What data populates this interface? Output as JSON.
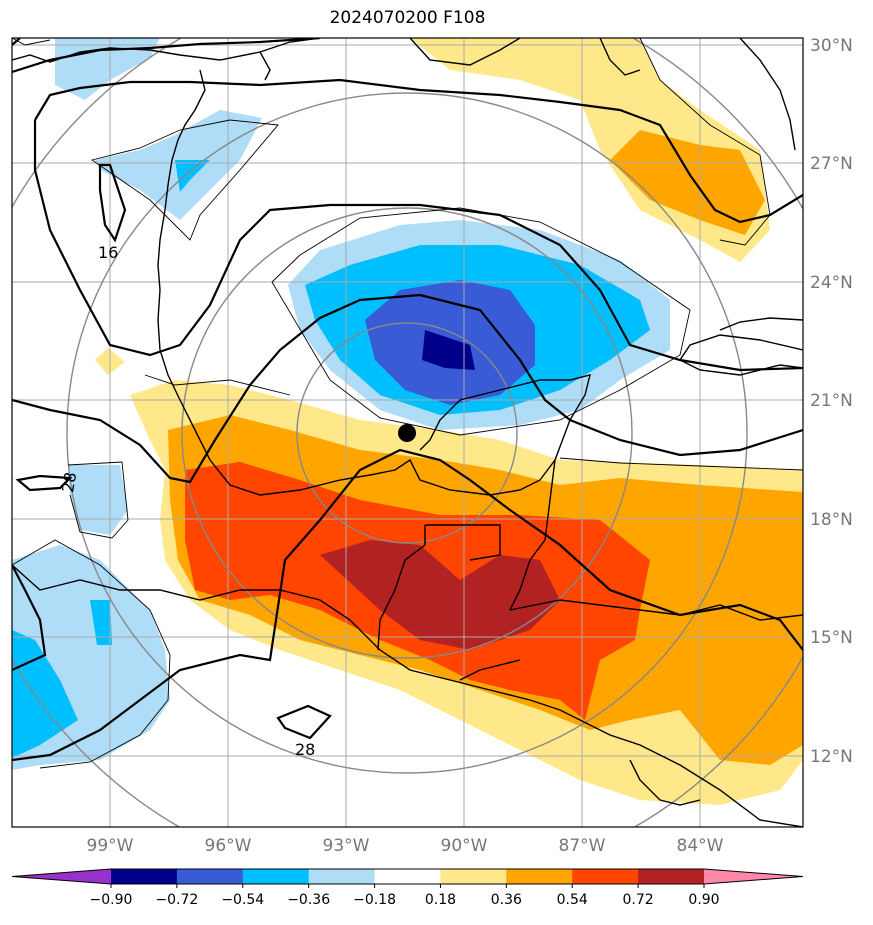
{
  "title": "2024070200 F108",
  "lat_labels": [
    "30°N",
    "27°N",
    "24°N",
    "21°N",
    "18°N",
    "15°N",
    "12°N"
  ],
  "lon_labels": [
    "99°W",
    "96°W",
    "93°W",
    "90°W",
    "87°W",
    "84°W"
  ],
  "colorbar": {
    "ticks": [
      "−0.90",
      "−0.72",
      "−0.54",
      "−0.36",
      "−0.18",
      "0.18",
      "0.36",
      "0.54",
      "0.72",
      "0.90"
    ],
    "colors": [
      "#9932cc",
      "#00008b",
      "#3a5bd6",
      "#00bfff",
      "#afdcf7",
      "#ffffff",
      "#ffe88a",
      "#ffa500",
      "#ff4500",
      "#b22222",
      "#ff88aa"
    ]
  },
  "contour_labels": [
    "16",
    "28",
    "28"
  ],
  "fill_colors": {
    "light_blue": "#afdcf7",
    "blue": "#00bfff",
    "mid_blue": "#3a5bd6",
    "navy": "#00008b",
    "yellow": "#ffe88a",
    "orange": "#ffa500",
    "red_orange": "#ff4500",
    "dark_red": "#b22222"
  },
  "marker": "storm-center"
}
